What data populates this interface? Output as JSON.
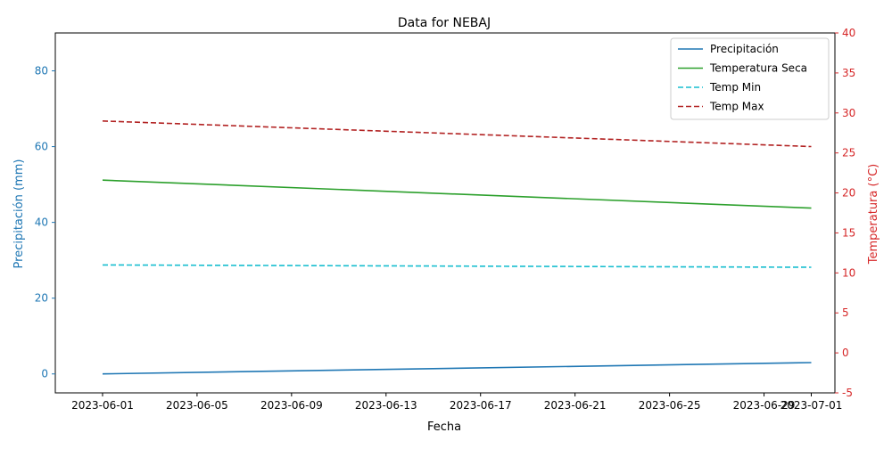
{
  "chart_data": {
    "type": "line",
    "title": "Data for NEBAJ",
    "xlabel": "Fecha",
    "ylabel_left": "Precipitación (mm)",
    "ylabel_right": "Temperatura (°C)",
    "x": [
      "2023-06-01",
      "2023-07-01"
    ],
    "xticks": [
      "2023-06-01",
      "2023-06-05",
      "2023-06-09",
      "2023-06-13",
      "2023-06-17",
      "2023-06-21",
      "2023-06-25",
      "2023-06-29",
      "2023-07-01"
    ],
    "xlim": [
      "2023-05-30",
      "2023-07-02"
    ],
    "ylim_left": [
      -5,
      90
    ],
    "yticks_left": [
      0,
      20,
      40,
      60,
      80
    ],
    "ylim_right": [
      -5,
      40
    ],
    "yticks_right": [
      -5,
      0,
      5,
      10,
      15,
      20,
      25,
      30,
      35,
      40
    ],
    "grid": false,
    "legend_position": "top-right",
    "series": [
      {
        "name": "Precipitación",
        "axis": "left",
        "color": "#1f77b4",
        "style": "solid",
        "values": [
          0.0,
          3.0
        ]
      },
      {
        "name": "Temperatura Seca",
        "axis": "right",
        "color": "#2ca02c",
        "style": "solid",
        "values": [
          21.6,
          18.1
        ]
      },
      {
        "name": "Temp Min",
        "axis": "right",
        "color": "#17becf",
        "style": "dashed",
        "values": [
          11.0,
          10.7
        ]
      },
      {
        "name": "Temp Max",
        "axis": "right",
        "color": "#b22222",
        "style": "dashed",
        "values": [
          29.0,
          25.8
        ]
      }
    ],
    "colors": {
      "left_axis": "#1f77b4",
      "right_axis": "#d62728",
      "axes": "#000000"
    }
  }
}
